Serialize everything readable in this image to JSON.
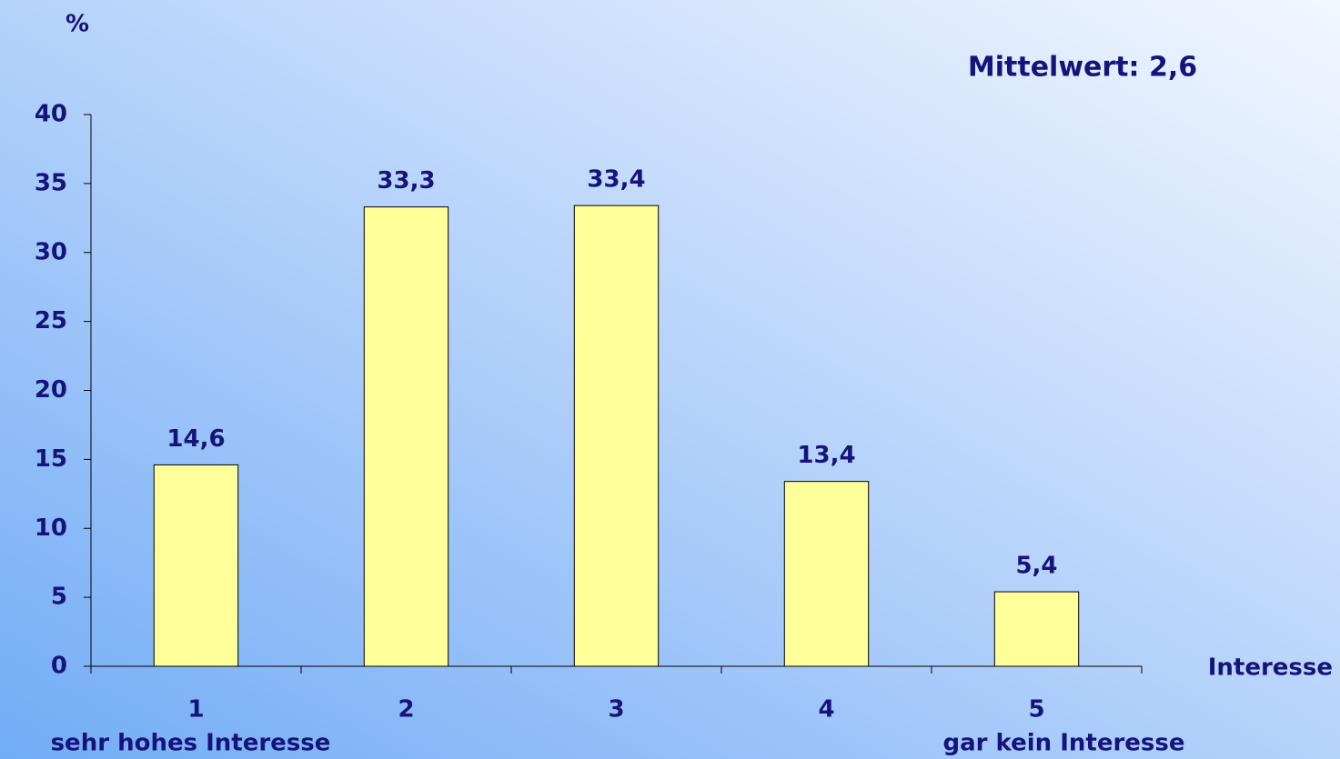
{
  "chart_data": {
    "type": "bar",
    "y_label": "%",
    "x_label": "Interesse",
    "annotation": "Mittelwert: 2,6",
    "categories": [
      "1",
      "2",
      "3",
      "4",
      "5"
    ],
    "category_notes": [
      "sehr hohes Interesse",
      null,
      null,
      null,
      "gar kein Interesse"
    ],
    "values": [
      14.6,
      33.3,
      33.4,
      13.4,
      5.4
    ],
    "value_labels": [
      "14,6",
      "33,3",
      "33,4",
      "13,4",
      "5,4"
    ],
    "color": "#ffff99",
    "ylim": [
      0,
      40
    ],
    "yticks": [
      0,
      5,
      10,
      15,
      20,
      25,
      30,
      35,
      40
    ],
    "grid": false
  }
}
